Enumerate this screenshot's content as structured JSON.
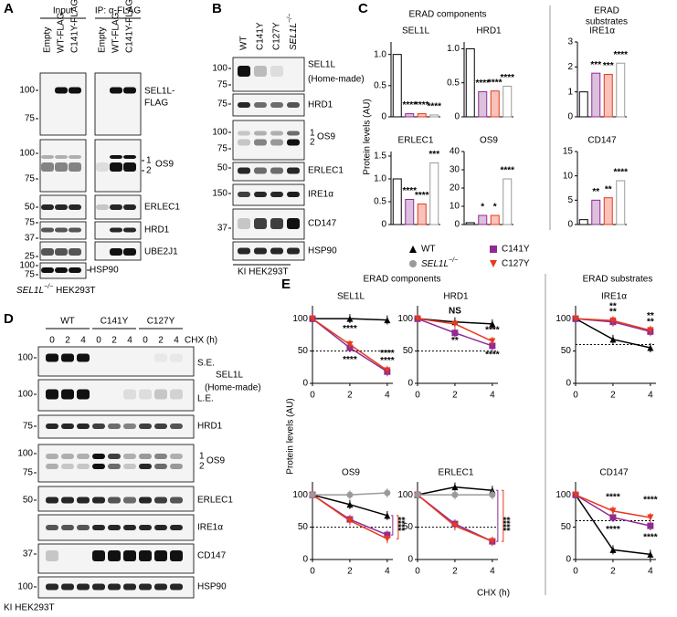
{
  "A": {
    "letter": "A",
    "groups": [
      "Input",
      "IP: α-FLAG"
    ],
    "lanes": [
      {
        "text": "Empty",
        "color": "#000000"
      },
      {
        "text": "WT-FLAG",
        "color": "#000000"
      },
      {
        "text": "C141Y-FLAG",
        "color": "#8e2c92"
      }
    ],
    "blots": [
      {
        "markers": [
          100,
          75
        ],
        "label": [
          "SEL1L-",
          "FLAG"
        ]
      },
      {
        "markers": [
          100,
          75
        ],
        "label": [
          "OS9"
        ],
        "isoforms": [
          "1",
          "2"
        ]
      },
      {
        "markers": [
          50
        ],
        "label": [
          "ERLEC1"
        ]
      },
      {
        "markers": [
          75,
          37
        ],
        "label": [
          "HRD1"
        ]
      },
      {
        "markers": [
          25
        ],
        "label": [
          "UBE2J1"
        ]
      },
      {
        "markers": [
          100,
          75
        ],
        "label": [
          "HSP90"
        ]
      }
    ],
    "cell_line": {
      "gene": "SEL1L",
      "sup": "−/−",
      "rest": "HEK293T"
    }
  },
  "B": {
    "letter": "B",
    "lanes": [
      {
        "text": "WT",
        "color": "#000000"
      },
      {
        "text": "C141Y",
        "color": "#8e2c92"
      },
      {
        "text": "C127Y",
        "color": "#e8391d"
      },
      {
        "gene": "SEL1L",
        "sup": "−/−",
        "color": "#000000"
      }
    ],
    "blots": [
      {
        "markers": [
          100,
          75
        ],
        "label": [
          "SEL1L",
          "(Home-made)"
        ]
      },
      {
        "markers": [
          75
        ],
        "label": [
          "HRD1"
        ]
      },
      {
        "markers": [
          100,
          75
        ],
        "label": [
          "OS9"
        ],
        "isoforms": [
          "1",
          "2"
        ]
      },
      {
        "markers": [
          50
        ],
        "label": [
          "ERLEC1"
        ]
      },
      {
        "markers": [
          150
        ],
        "label": [
          "IRE1α"
        ]
      },
      {
        "markers": [
          37
        ],
        "label": [
          "CD147"
        ]
      },
      {
        "markers": [],
        "label": [
          "HSP90"
        ]
      }
    ],
    "cell_line": "KI HEK293T"
  },
  "C": {
    "letter": "C",
    "components_title": "ERAD components",
    "substrates_title": [
      "ERAD",
      "substrates"
    ],
    "y_label": "Protein levels (AU)",
    "series": [
      {
        "name": "WT",
        "color": "#000000",
        "marker": "triangle"
      },
      {
        "name": "C141Y",
        "color": "#8e2c92",
        "marker": "square"
      },
      {
        "name": "C127Y",
        "color": "#e8391d",
        "marker": "triangle-down"
      },
      {
        "name": "SEL1L",
        "sup": "−/−",
        "color": "#9a9a9a",
        "marker": "circle"
      }
    ],
    "charts": [
      {
        "title": "SEL1L",
        "ylim": [
          0,
          1.2
        ],
        "yticks": [
          0,
          0.5,
          {
            "value": 1,
            "label": "1.0"
          }
        ],
        "values": [
          1.0,
          0.05,
          0.05,
          0.03
        ],
        "annotations": [
          "****",
          "****",
          "****"
        ]
      },
      {
        "title": "HRD1",
        "ylim": [
          0,
          1.1
        ],
        "yticks": [
          0,
          0.5,
          {
            "value": 1,
            "label": "1.0"
          }
        ],
        "values": [
          1.0,
          0.37,
          0.38,
          0.45
        ],
        "annotations": [
          "****",
          "****",
          "****"
        ]
      },
      {
        "title": "IRE1α",
        "ylim": [
          0,
          3
        ],
        "yticks": [
          0,
          1,
          2,
          3
        ],
        "values": [
          1.0,
          1.75,
          1.7,
          2.15
        ],
        "annotations": [
          "***",
          "***",
          "****"
        ]
      },
      {
        "title": "ERLEC1",
        "ylim": [
          0,
          1.6
        ],
        "yticks": [
          0,
          0.5,
          {
            "value": 1,
            "label": "1.0"
          },
          0.5,
          1.5
        ],
        "values": [
          1.0,
          0.55,
          0.45,
          1.35
        ],
        "annotations": [
          "****",
          "****",
          "***"
        ]
      },
      {
        "title": "OS9",
        "ylim": [
          0,
          40
        ],
        "yticks": [
          0,
          10,
          20,
          30,
          40
        ],
        "values": [
          1,
          5,
          5,
          25
        ],
        "annotations": [
          "*",
          "*",
          "****"
        ]
      },
      {
        "title": "CD147",
        "ylim": [
          0,
          15
        ],
        "yticks": [
          0,
          5,
          10,
          15
        ],
        "values": [
          1,
          5,
          5.5,
          9
        ],
        "annotations": [
          "**",
          "**",
          "****"
        ]
      }
    ]
  },
  "D": {
    "letter": "D",
    "groups": [
      {
        "text": "WT",
        "color": "#000000"
      },
      {
        "text": "C141Y",
        "color": "#8e2c92"
      },
      {
        "text": "C127Y",
        "color": "#e8391d"
      }
    ],
    "timepoints": [
      0,
      2,
      4
    ],
    "time_label": "CHX (h)",
    "sel1l_label": [
      "SEL1L",
      "(Home-made)"
    ],
    "blots": [
      {
        "markers": [
          100
        ],
        "tag": "S.E."
      },
      {
        "markers": [
          100
        ],
        "tag": "L.E."
      },
      {
        "markers": [
          75
        ],
        "label": [
          "HRD1"
        ]
      },
      {
        "markers": [
          100,
          75
        ],
        "label": [
          "OS9"
        ],
        "isoforms": [
          "1",
          "2"
        ]
      },
      {
        "markers": [
          50
        ],
        "label": [
          "ERLEC1"
        ]
      },
      {
        "markers": [],
        "label": [
          "IRE1α"
        ]
      },
      {
        "markers": [
          37
        ],
        "label": [
          "CD147"
        ]
      },
      {
        "markers": [
          100
        ],
        "label": [
          "HSP90"
        ]
      }
    ],
    "cell_line": "KI HEK293T"
  },
  "E": {
    "letter": "E",
    "components_title": "ERAD components",
    "substrates_title": "ERAD substrates",
    "y_label": "Protein levels (AU)",
    "x_label": "CHX (h)",
    "x": [
      0,
      2,
      4
    ],
    "xlim": [
      0,
      4.3
    ],
    "xticks": [
      0,
      2,
      4
    ],
    "ylim": [
      0,
      120
    ],
    "yticks": [
      0,
      50,
      100
    ],
    "colors": [
      "#000000",
      "#8e2c92",
      "#e8391d",
      "#9a9a9a"
    ],
    "markers": [
      "triangle",
      "square",
      "triangle-down",
      "circle"
    ],
    "charts": [
      {
        "title": "SEL1L",
        "reference": 50,
        "lines": [
          [
            100,
            100,
            98
          ],
          [
            100,
            55,
            18
          ],
          [
            100,
            60,
            20
          ]
        ],
        "annotations": [
          {
            "text": "****",
            "color": "#e8391d"
          },
          {
            "text": "****",
            "color": "#8e2c92"
          },
          {
            "text": "****",
            "color": "#8e2c92"
          },
          {
            "text": "****",
            "color": "#e8391d"
          }
        ]
      },
      {
        "title": "HRD1",
        "reference": 50,
        "lines": [
          [
            100,
            95,
            92
          ],
          [
            100,
            78,
            58
          ],
          [
            100,
            92,
            65
          ]
        ],
        "annotations": [
          {
            "text": "NS",
            "color": "#e8391d"
          },
          {
            "text": "**",
            "color": "#8e2c92"
          },
          {
            "text": "****",
            "color": "#e8391d"
          },
          {
            "text": "****",
            "color": "#8e2c92"
          }
        ]
      },
      {
        "title": "IRE1α",
        "reference": 60,
        "lines": [
          [
            100,
            68,
            55
          ],
          [
            100,
            95,
            80
          ],
          [
            100,
            97,
            82
          ]
        ],
        "annotations": [
          {
            "text": "**",
            "color": "#e8391d"
          },
          {
            "text": "**",
            "color": "#8e2c92"
          },
          {
            "text": "**",
            "color": "#e8391d"
          },
          {
            "text": "**",
            "color": "#8e2c92"
          }
        ]
      },
      {
        "title": "OS9",
        "reference": 50,
        "lines": [
          [
            100,
            85,
            68
          ],
          [
            100,
            62,
            38
          ],
          [
            100,
            60,
            32
          ],
          [
            100,
            100,
            103
          ]
        ],
        "annotations": [
          {
            "text": "****",
            "color": "#8e2c92"
          },
          {
            "text": "****",
            "color": "#e8391d"
          }
        ]
      },
      {
        "title": "ERLEC1",
        "reference": 50,
        "lines": [
          [
            100,
            112,
            107
          ],
          [
            100,
            55,
            28
          ],
          [
            100,
            52,
            28
          ],
          [
            100,
            100,
            100
          ]
        ],
        "annotations": [
          {
            "text": "****",
            "color": "#8e2c92"
          },
          {
            "text": "****",
            "color": "#e8391d"
          }
        ]
      },
      {
        "title": "CD147",
        "reference": 60,
        "lines": [
          [
            100,
            15,
            8
          ],
          [
            100,
            65,
            52
          ],
          [
            100,
            75,
            65
          ]
        ],
        "annotations": [
          {
            "text": "****",
            "color": "#e8391d"
          },
          {
            "text": "****",
            "color": "#8e2c92"
          },
          {
            "text": "****",
            "color": "#e8391d"
          },
          {
            "text": "****",
            "color": "#8e2c92"
          }
        ]
      }
    ]
  }
}
